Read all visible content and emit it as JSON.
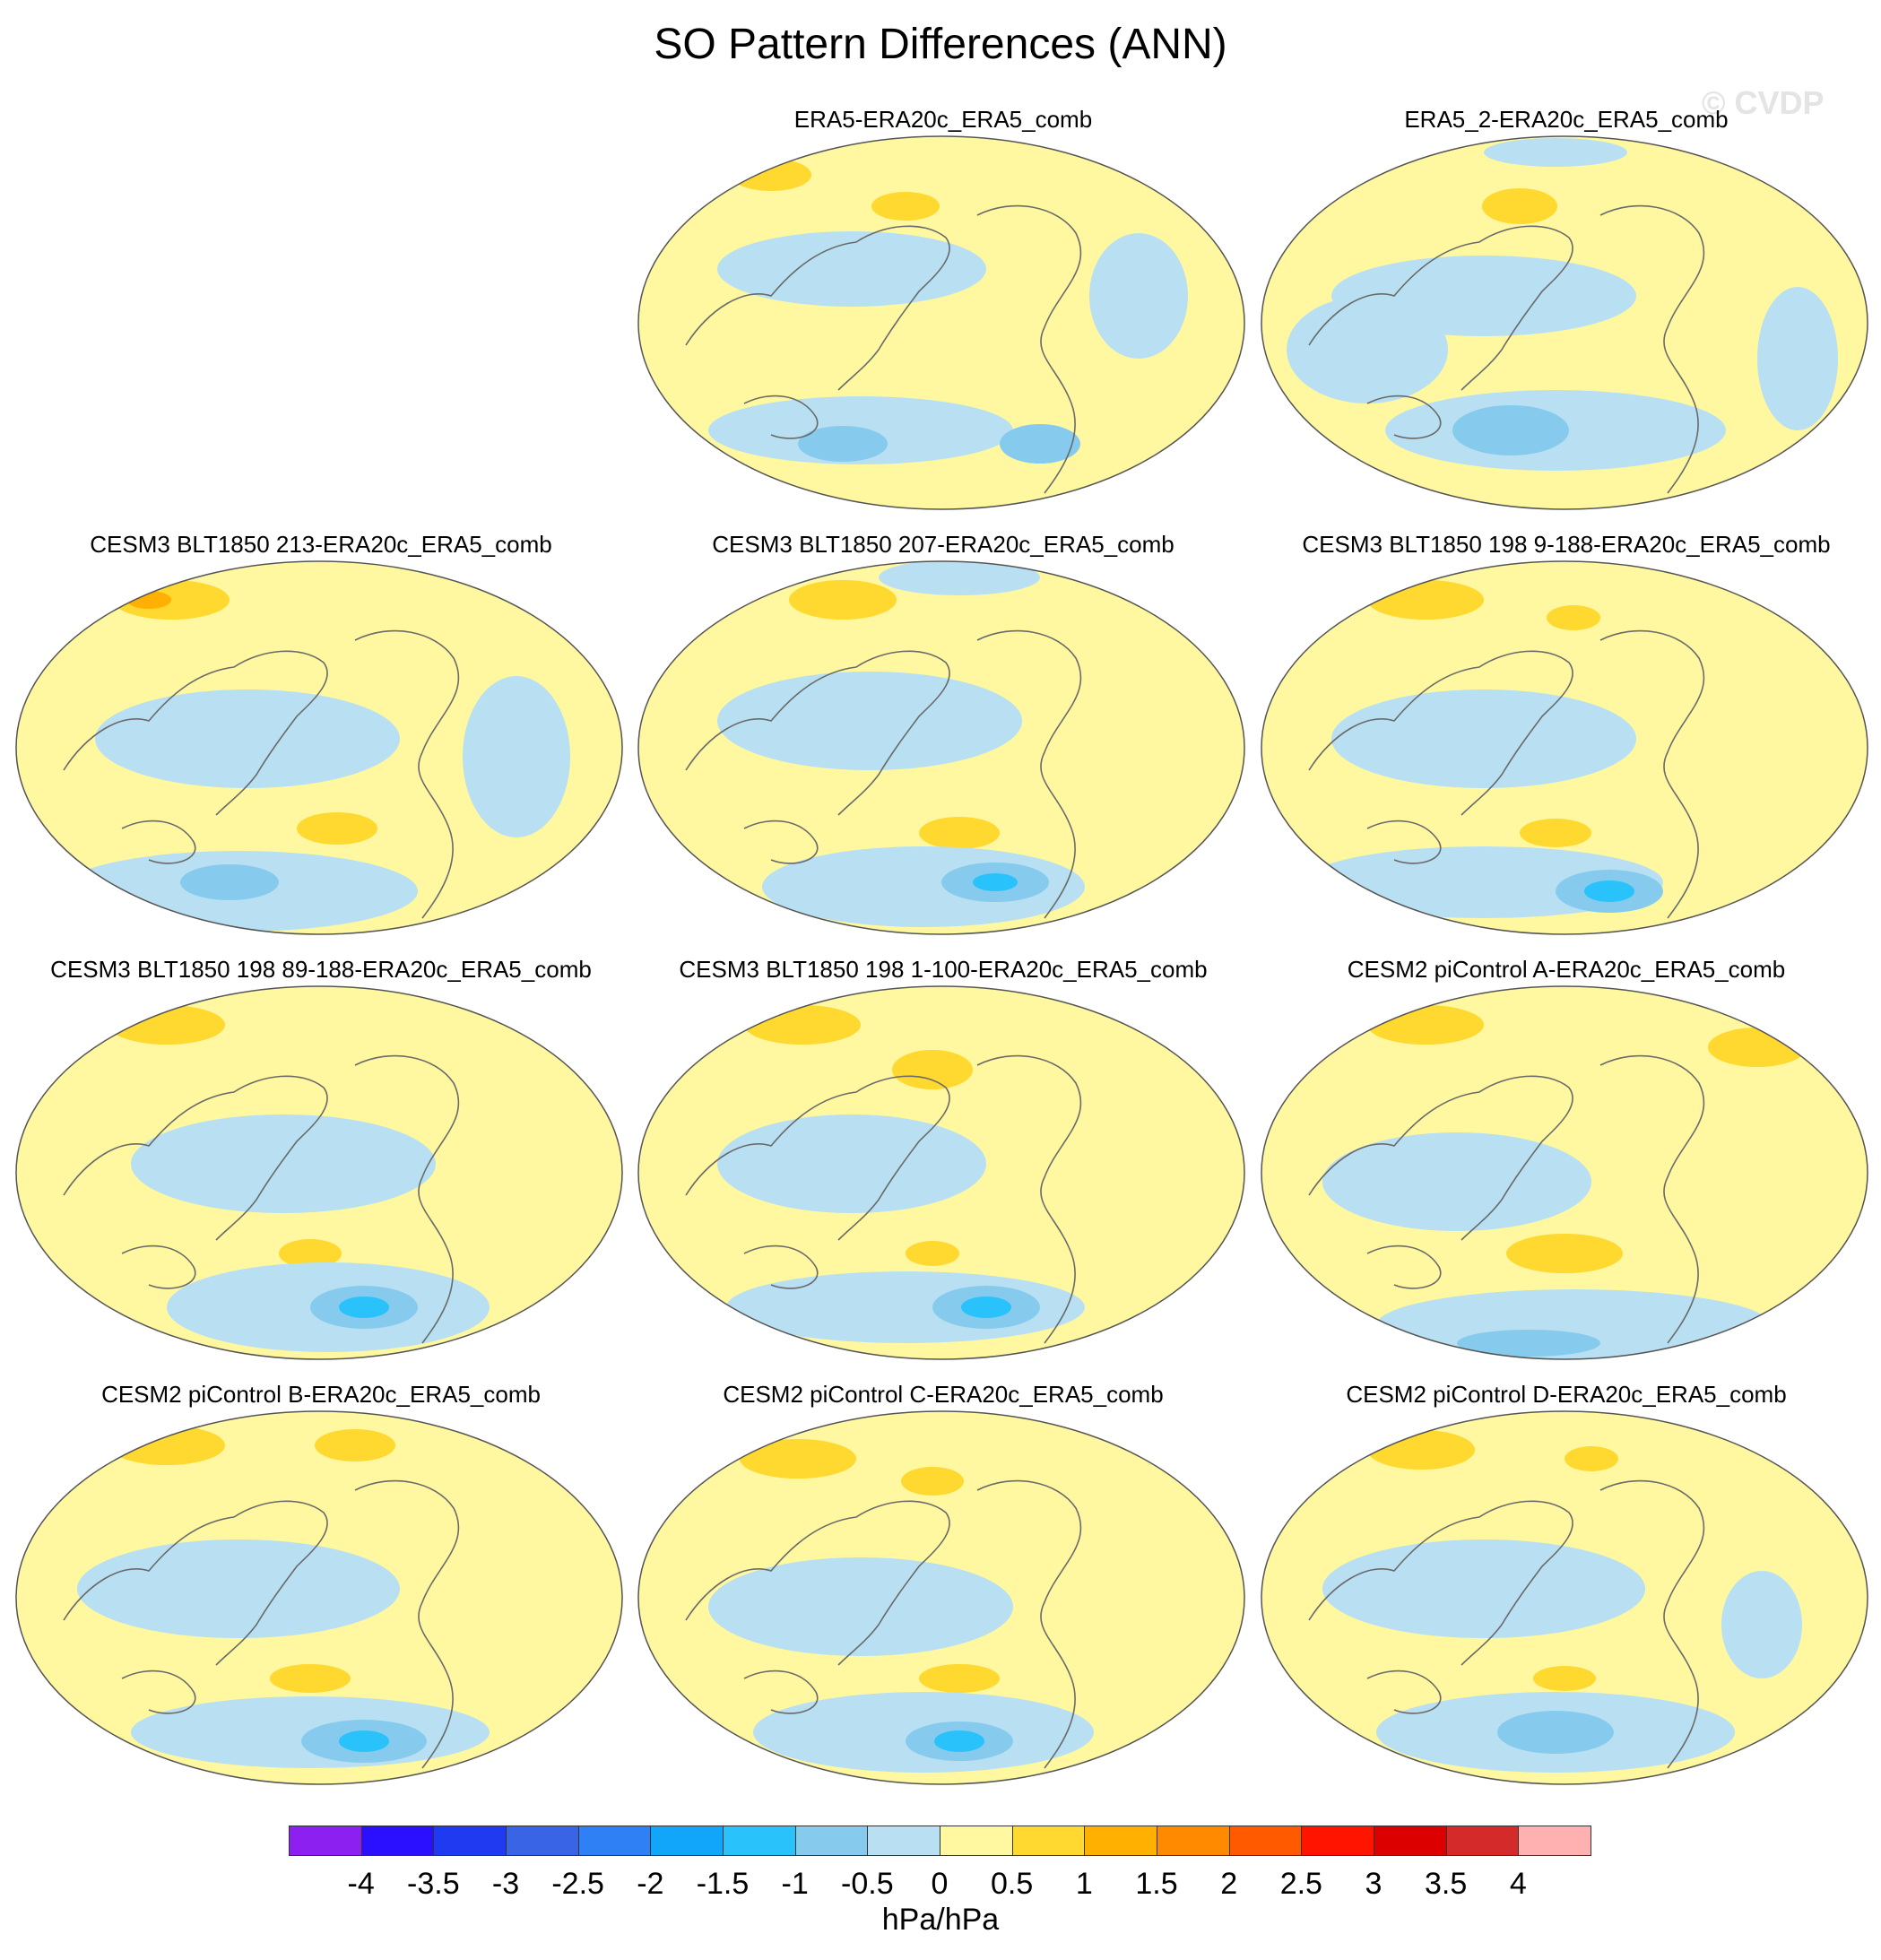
{
  "title": "SO Pattern Differences (ANN)",
  "watermark": "© CVDP",
  "panels": [
    {
      "title": "ERA5-ERA20c_ERA5_comb"
    },
    {
      "title": "ERA5_2-ERA20c_ERA5_comb"
    },
    {
      "title": "CESM3 BLT1850 213-ERA20c_ERA5_comb"
    },
    {
      "title": "CESM3 BLT1850 207-ERA20c_ERA5_comb"
    },
    {
      "title": "CESM3 BLT1850 198 9-188-ERA20c_ERA5_comb"
    },
    {
      "title": "CESM3 BLT1850 198 89-188-ERA20c_ERA5_comb"
    },
    {
      "title": "CESM3 BLT1850 198 1-100-ERA20c_ERA5_comb"
    },
    {
      "title": "CESM2 piControl A-ERA20c_ERA5_comb"
    },
    {
      "title": "CESM2 piControl B-ERA20c_ERA5_comb"
    },
    {
      "title": "CESM2 piControl C-ERA20c_ERA5_comb"
    },
    {
      "title": "CESM2 piControl D-ERA20c_ERA5_comb"
    }
  ],
  "colorbar": {
    "units": "hPa/hPa",
    "colors": [
      "#8c20f0",
      "#2a10ff",
      "#1f3af0",
      "#3a64e6",
      "#2f80f4",
      "#12a6fa",
      "#2ac2fa",
      "#86cbee",
      "#b8e0f2",
      "#fff8a0",
      "#ffd830",
      "#ffb000",
      "#ff8a00",
      "#ff5a00",
      "#ff1400",
      "#dc0000",
      "#d42a2a",
      "#ffb0b0"
    ],
    "ticks": [
      "-4",
      "-3.5",
      "-3",
      "-2.5",
      "-2",
      "-1.5",
      "-1",
      "-0.5",
      "0",
      "0.5",
      "1",
      "1.5",
      "2",
      "2.5",
      "3",
      "3.5",
      "4"
    ]
  }
}
